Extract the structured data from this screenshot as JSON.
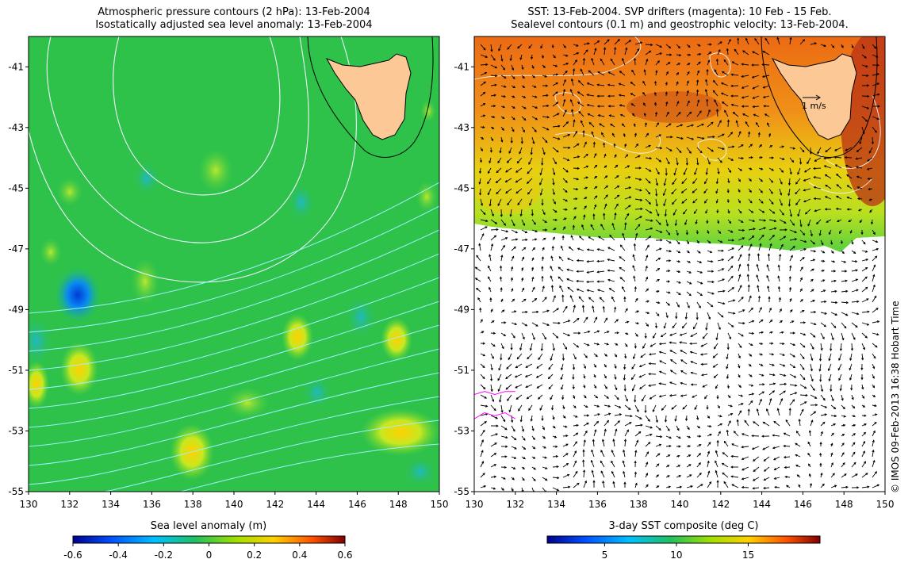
{
  "titles": {
    "left_line1": "Atmospheric pressure contours (2 hPa): 13-Feb-2004",
    "left_line2": "Isostatically adjusted sea level anomaly: 13-Feb-2004",
    "right_line1": "SST: 13-Feb-2004. SVP drifters (magenta): 10 Feb - 15 Feb.",
    "right_line2": "Sealevel contours (0.1 m) and geostrophic velocity: 13-Feb-2004."
  },
  "credit": "© IMOS 09-Feb-2013 16:38 Hobart Time",
  "velocity_scale_label": "1 m/s",
  "colors": {
    "sea_level_base": "#2ec24a",
    "sst_base": "#e8841c",
    "land": "#fcc896",
    "pressure_contour": "#f2f2ff",
    "sea_level_contour": "#9ef0ff",
    "drifter": "#ff00ff"
  },
  "chart_data": [
    {
      "type": "heatmap",
      "title": "Atmospheric pressure contours (2 hPa): 13-Feb-2004 / Isostatically adjusted sea level anomaly: 13-Feb-2004",
      "xlabel": "",
      "ylabel": "",
      "x_ticks": [
        "130",
        "132",
        "134",
        "136",
        "138",
        "140",
        "142",
        "144",
        "146",
        "148",
        "150"
      ],
      "y_ticks": [
        "-41",
        "-43",
        "-45",
        "-47",
        "-49",
        "-51",
        "-53",
        "-55"
      ],
      "xlim": [
        130,
        150
      ],
      "ylim": [
        -55,
        -40
      ],
      "colorbar": {
        "label": "Sea level anomaly (m)",
        "ticks": [
          "-0.6",
          "-0.4",
          "-0.2",
          "0",
          "0.2",
          "0.4",
          "0.6"
        ],
        "range": [
          -0.6,
          0.6
        ],
        "colormap": [
          "#00008f",
          "#0050ff",
          "#00c0ff",
          "#20c060",
          "#a0e000",
          "#ffd000",
          "#ff5000",
          "#800000"
        ]
      },
      "features": [
        {
          "name": "negative anomaly",
          "lon": 132.5,
          "lat": -48.6,
          "value": -0.5
        },
        {
          "name": "positive anomaly",
          "lon": 131.5,
          "lat": -50.9,
          "value": 0.25
        },
        {
          "name": "positive anomaly",
          "lon": 138.0,
          "lat": -53.7,
          "value": 0.3
        },
        {
          "name": "positive anomaly",
          "lon": 139.0,
          "lat": -44.6,
          "value": 0.2
        },
        {
          "name": "positive anomaly",
          "lon": 148.5,
          "lat": -53.0,
          "value": 0.3
        }
      ]
    },
    {
      "type": "heatmap",
      "title": "SST: 13-Feb-2004. SVP drifters (magenta): 10 Feb - 15 Feb. / Sealevel contours (0.1 m) and geostrophic velocity: 13-Feb-2004.",
      "xlabel": "",
      "ylabel": "",
      "x_ticks": [
        "130",
        "132",
        "134",
        "136",
        "138",
        "140",
        "142",
        "144",
        "146",
        "148",
        "150"
      ],
      "y_ticks": [
        "-41",
        "-43",
        "-45",
        "-47",
        "-49",
        "-51",
        "-53",
        "-55"
      ],
      "xlim": [
        130,
        150
      ],
      "ylim": [
        -55,
        -40
      ],
      "colorbar": {
        "label": "3-day SST composite (deg C)",
        "ticks": [
          "5",
          "10",
          "15"
        ],
        "range": [
          1,
          20
        ],
        "colormap": [
          "#00008f",
          "#0050ff",
          "#00c0ff",
          "#20c060",
          "#a0e000",
          "#ffd000",
          "#ff5000",
          "#800000"
        ]
      },
      "sst_coverage_south_limit_lat": -47,
      "velocity_scale_ms": 1,
      "drifter_tracks": [
        {
          "lon": [
            130.0,
            130.5,
            131.0,
            131.5,
            132.0
          ],
          "lat": [
            -51.8,
            -51.7,
            -51.8,
            -51.7,
            -51.7
          ]
        },
        {
          "lon": [
            130.0,
            130.5,
            131.0,
            131.5,
            132.0
          ],
          "lat": [
            -52.6,
            -52.4,
            -52.5,
            -52.4,
            -52.6
          ]
        }
      ]
    }
  ]
}
